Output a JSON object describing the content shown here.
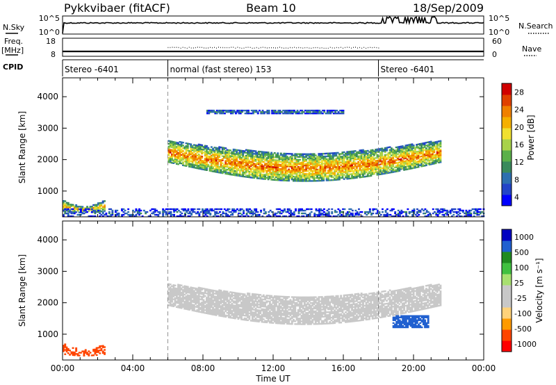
{
  "header": {
    "station": "Pykkvibaer (fitACF)",
    "beam": "Beam 10",
    "date": "18/Sep/2009"
  },
  "strips": {
    "nsky_label": "N.Sky",
    "nsky_ticks": [
      "10^5",
      "10^0"
    ],
    "nsearch_label": "N.Search",
    "nsearch_ticks": [
      "10^5",
      "10^0"
    ],
    "freq_label": "Freq.",
    "freq_unit": "[MHz]",
    "freq_ticks": [
      "18",
      "8"
    ],
    "nave_label": "Nave",
    "nave_ticks": [
      "60",
      "0"
    ],
    "cpid_label": "CPID"
  },
  "cpid_segments": [
    {
      "label": "Stereo -6401",
      "start_hour": 0,
      "end_hour": 6
    },
    {
      "label": "normal (fast stereo) 153",
      "start_hour": 6,
      "end_hour": 18
    },
    {
      "label": "Stereo -6401",
      "start_hour": 18,
      "end_hour": 24
    }
  ],
  "colors": {
    "power": [
      "#0000ff",
      "#2244c8",
      "#2d6fb0",
      "#3a8a5c",
      "#5bb04a",
      "#a8d24a",
      "#f0e030",
      "#f5b000",
      "#f08000",
      "#e04000",
      "#d00000"
    ],
    "velocity": [
      "#ff0000",
      "#ff4500",
      "#ff9a00",
      "#ffd27a",
      "#c8c8c8",
      "#c8c8c8",
      "#a8e070",
      "#40c040",
      "#208a20",
      "#2060d0",
      "#0000c0"
    ]
  },
  "chart_data": [
    {
      "type": "heatmap",
      "quantity": "power",
      "ylabel": "Slant Range [km]",
      "xlabel": "Time UT",
      "x_ticks": [
        "00:00",
        "04:00",
        "08:00",
        "12:00",
        "16:00",
        "20:00",
        "00:00"
      ],
      "xlim_hours": [
        0,
        24
      ],
      "y_ticks": [
        1000,
        2000,
        3000,
        4000
      ],
      "ylim": [
        180,
        4600
      ],
      "colorbar": {
        "label": "Power [dB]",
        "ticks": [
          "28",
          "24",
          "20",
          "16",
          "12",
          "8",
          "4"
        ],
        "range": [
          0,
          30
        ]
      },
      "regions": [
        {
          "t0": 6.0,
          "t1": 21.5,
          "r_lower_start": 1900,
          "r_lower_mid": 1300,
          "r_upper_start": 2600,
          "r_upper_mid": 2200,
          "peak_db": 22
        },
        {
          "t0": 0.0,
          "t1": 2.4,
          "r_lower_start": 350,
          "r_lower_mid": 300,
          "r_upper_start": 700,
          "r_upper_mid": 500,
          "peak_db": 20
        },
        {
          "t0": 0.0,
          "t1": 24.0,
          "r_lower_start": 180,
          "r_lower_mid": 180,
          "r_upper_start": 420,
          "r_upper_mid": 420,
          "peak_db": 6
        },
        {
          "t0": 8.2,
          "t1": 16.0,
          "r_lower_start": 3450,
          "r_lower_mid": 3450,
          "r_upper_start": 3560,
          "r_upper_mid": 3560,
          "peak_db": 8
        }
      ]
    },
    {
      "type": "heatmap",
      "quantity": "velocity",
      "ylabel": "Slant Range [km]",
      "xlabel": "Time UT",
      "x_ticks": [
        "00:00",
        "04:00",
        "08:00",
        "12:00",
        "16:00",
        "20:00",
        "00:00"
      ],
      "xlim_hours": [
        0,
        24
      ],
      "y_ticks": [
        1000,
        2000,
        3000,
        4000
      ],
      "ylim": [
        180,
        4600
      ],
      "colorbar": {
        "label": "Velocity [m s⁻¹]",
        "ticks": [
          "1000",
          "500",
          "100",
          "25",
          "-25",
          "-100",
          "-500",
          "-1000"
        ],
        "range": [
          -1000,
          1000
        ]
      },
      "regions": [
        {
          "t0": 6.0,
          "t1": 21.5,
          "r_lower_start": 1900,
          "r_lower_mid": 1300,
          "r_upper_start": 2600,
          "r_upper_mid": 2200,
          "velocity": 0
        },
        {
          "t0": 18.8,
          "t1": 20.8,
          "r_lower_start": 1200,
          "r_lower_mid": 1200,
          "r_upper_start": 1600,
          "r_upper_mid": 1600,
          "velocity": 700
        },
        {
          "t0": 0.0,
          "t1": 2.4,
          "r_lower_start": 350,
          "r_lower_mid": 300,
          "r_upper_start": 700,
          "r_upper_mid": 500,
          "velocity": -300
        }
      ]
    }
  ]
}
